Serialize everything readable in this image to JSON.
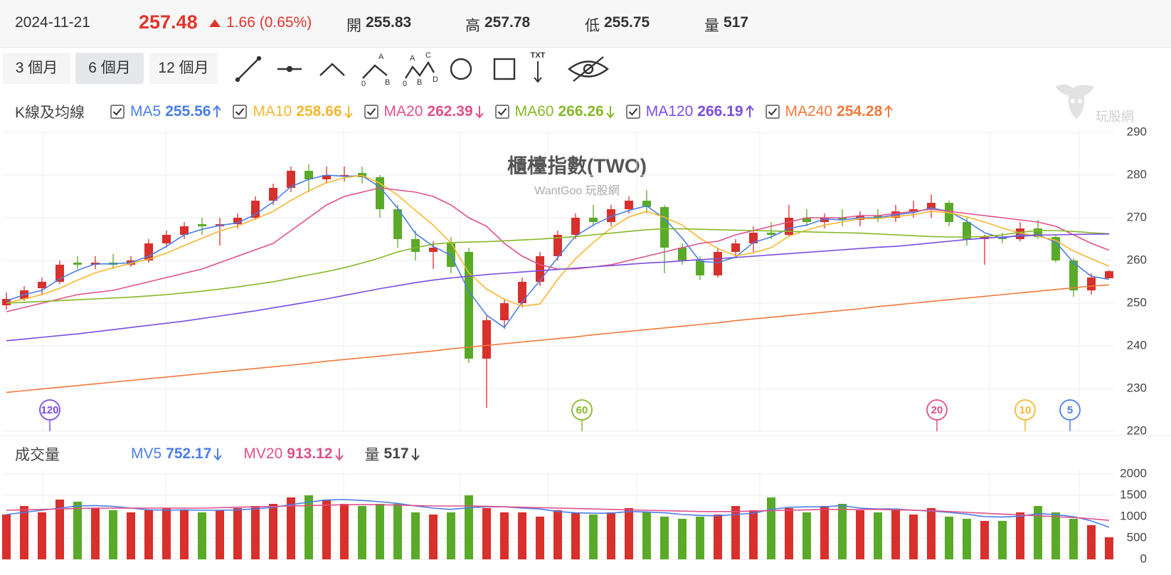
{
  "header": {
    "date": "2024-11-21",
    "change": "1.66 (0.65%)",
    "open_label": "開",
    "high_label": "高",
    "low_label": "低",
    "volume_label": "量"
  },
  "toolbar": {
    "buttons": [
      "3 個月",
      "6 個月",
      "12 個月"
    ],
    "active": 1,
    "abc": [
      "A",
      "0",
      "B"
    ],
    "abcd": [
      "A",
      "C",
      "0",
      "B",
      "D"
    ],
    "text_tool": "TXT"
  },
  "logo": "玩股網",
  "chart_data": [
    {
      "type": "candlestick",
      "title": "櫃檯指數(TWO)",
      "subtitle": "WantGoo 玩股網",
      "legend_title": "K線及均線",
      "up_color": "#d8302c",
      "down_color": "#5aaa2a",
      "open": [
        249.5,
        251,
        253.5,
        255,
        259.5,
        259,
        259.5,
        259,
        260,
        264,
        266,
        268.5,
        268,
        268.5,
        270,
        274,
        277,
        281,
        279,
        280,
        280.5,
        279.5,
        272,
        265,
        262,
        264,
        262,
        237,
        246,
        250,
        255,
        261,
        266,
        270,
        269,
        272,
        274,
        272.5,
        263,
        260,
        256.5,
        262,
        264,
        266.5,
        266,
        270,
        269,
        270,
        269.5,
        270.5,
        270,
        271.5,
        272,
        273.5,
        269,
        265,
        265.5,
        265,
        267.5,
        265.5,
        260,
        253,
        255.83
      ],
      "high": [
        252.5,
        254,
        256,
        260,
        261,
        261,
        261.5,
        261,
        265,
        267,
        269,
        270,
        270,
        271,
        275,
        278,
        282,
        282.5,
        282,
        282,
        282,
        280,
        273,
        267,
        264.5,
        265.5,
        263,
        247,
        251,
        256,
        262,
        267,
        271,
        273,
        273,
        275,
        276.5,
        273,
        264,
        261,
        263,
        265,
        268,
        269,
        273,
        272,
        271,
        272,
        271.5,
        272,
        273,
        274,
        275.5,
        274,
        270,
        266,
        266.5,
        269,
        269.5,
        266,
        260.5,
        257,
        257.78
      ],
      "low": [
        248.5,
        250.5,
        252,
        254.5,
        258,
        258,
        258,
        258.5,
        259.5,
        263,
        265,
        266,
        263.5,
        267.5,
        269.5,
        273,
        276,
        276,
        278,
        278.5,
        278,
        270,
        263,
        260,
        258,
        257,
        236,
        225.5,
        244,
        249,
        254,
        260,
        265,
        268,
        268,
        271,
        271,
        257,
        259,
        255.5,
        256,
        261,
        262,
        265,
        265.5,
        268,
        267.5,
        268,
        268,
        269,
        269,
        270,
        270,
        268,
        263.5,
        259,
        264,
        264.5,
        265,
        259.5,
        251.5,
        252,
        255.75
      ],
      "close": [
        251,
        253,
        255,
        259,
        259,
        259.5,
        259,
        260,
        264,
        266,
        268,
        268,
        268.5,
        270,
        274,
        277,
        281,
        279,
        280,
        280,
        279.5,
        272,
        265,
        262,
        263,
        258.5,
        237,
        246,
        250,
        255,
        261,
        266,
        270,
        269,
        272,
        274,
        272.5,
        263,
        260,
        256.5,
        262,
        264,
        266.5,
        266,
        270,
        269,
        270,
        269.5,
        270.5,
        270,
        271.5,
        272,
        273.5,
        269,
        265,
        265.5,
        265,
        267.5,
        265.5,
        260,
        253,
        256,
        257.48
      ],
      "series": [
        {
          "name": "MA5",
          "color": "#4a7ee8",
          "trend": "up",
          "values": [
            250.5,
            252,
            253,
            255.7,
            257.7,
            259.2,
            259.2,
            259.5,
            261,
            263.3,
            266,
            267.3,
            268.2,
            268.8,
            270.8,
            273.7,
            277.3,
            279,
            280,
            279.7,
            279.8,
            277.2,
            272.2,
            266.3,
            263.3,
            261.2,
            252.8,
            247.2,
            244.3,
            250.3,
            255.3,
            260.7,
            265.7,
            268.3,
            270.3,
            271.7,
            272.8,
            269.8,
            265.2,
            259.8,
            259.5,
            260.8,
            264.2,
            265.5,
            267.5,
            268.3,
            269.7,
            269.5,
            270,
            270,
            270.7,
            271.2,
            272.3,
            271.5,
            269.2,
            266.5,
            265.2,
            266,
            266,
            264.3,
            259.5,
            256.3,
            255.56
          ]
        },
        {
          "name": "MA10",
          "color": "#f5b731",
          "trend": "down",
          "values": [
            250,
            251,
            252,
            253.5,
            255.4,
            257.1,
            258.3,
            259.3,
            260.3,
            261.7,
            263.5,
            265.2,
            266.9,
            268.1,
            269.7,
            271.5,
            274.1,
            276.3,
            278.2,
            279.4,
            279.9,
            278.1,
            275.3,
            271.7,
            268.3,
            264.1,
            257.1,
            253.3,
            250.9,
            249.3,
            249.8,
            255.6,
            260.4,
            264.2,
            267.6,
            270.2,
            271.5,
            270.1,
            268.3,
            265.2,
            262.8,
            261.1,
            261.8,
            263,
            265.7,
            267.1,
            268.3,
            269,
            269.8,
            269.8,
            270.3,
            270.7,
            271.5,
            271.2,
            270.2,
            269,
            267.6,
            266.4,
            265.7,
            264.7,
            262.2,
            260.4,
            258.66
          ]
        },
        {
          "name": "MA20",
          "color": "#e0508a",
          "trend": "down",
          "values": [
            248,
            249,
            250,
            251,
            252,
            252.5,
            253,
            254,
            255,
            256,
            257,
            258,
            259.5,
            261,
            262.5,
            264,
            267,
            270,
            273,
            275,
            276,
            277,
            276.5,
            276,
            275,
            273,
            270,
            268,
            264,
            261,
            259,
            258,
            258,
            258.5,
            259,
            260,
            261,
            262,
            263,
            264,
            264.5,
            266,
            267,
            268,
            269,
            270,
            270,
            270,
            270.5,
            270.5,
            271,
            271.5,
            272,
            271.5,
            271,
            270.5,
            270,
            269.5,
            269,
            268,
            266,
            264,
            262.39
          ]
        },
        {
          "name": "MA60",
          "color": "#86b828",
          "trend": "down",
          "values": [
            250,
            250.2,
            250.4,
            250.6,
            250.8,
            251,
            251.2,
            251.4,
            251.7,
            252,
            252.4,
            252.8,
            253.3,
            253.8,
            254.4,
            255,
            255.8,
            256.6,
            257.4,
            258.3,
            259.4,
            260.6,
            262,
            263,
            263.8,
            264.2,
            264.3,
            264.4,
            264.6,
            264.8,
            265,
            265.3,
            265.6,
            266,
            266.4,
            266.8,
            267.2,
            267.4,
            267.4,
            267.3,
            267.2,
            267.1,
            267,
            266.9,
            266.8,
            266.7,
            266.6,
            266.5,
            266.4,
            266.2,
            266,
            265.8,
            265.6,
            265.5,
            265.5,
            265.6,
            266,
            266.6,
            267,
            267,
            266.8,
            266.5,
            266.26
          ]
        },
        {
          "name": "MA120",
          "color": "#7b4de0",
          "trend": "up",
          "values": [
            241.2,
            241.6,
            242,
            242.4,
            242.8,
            243.3,
            243.8,
            244.3,
            244.8,
            245.3,
            245.8,
            246.4,
            247,
            247.6,
            248.2,
            248.9,
            249.6,
            250.3,
            251,
            251.8,
            252.6,
            253.4,
            254.1,
            254.8,
            255.4,
            255.9,
            256.3,
            256.7,
            257,
            257.3,
            257.6,
            257.9,
            258.2,
            258.5,
            258.8,
            259.1,
            259.4,
            259.6,
            259.9,
            260.2,
            260.4,
            260.7,
            261,
            261.3,
            261.6,
            261.9,
            262.2,
            262.5,
            262.8,
            263.1,
            263.3,
            263.7,
            264.1,
            264.5,
            264.9,
            265.2,
            265.5,
            265.7,
            265.9,
            266,
            266.1,
            266.15,
            266.19
          ]
        },
        {
          "name": "MA240",
          "color": "#f07a3c",
          "trend": "up",
          "values": [
            229.1,
            229.5,
            229.9,
            230.3,
            230.7,
            231.1,
            231.5,
            231.9,
            232.3,
            232.7,
            233.1,
            233.5,
            233.9,
            234.3,
            234.7,
            235.1,
            235.5,
            235.9,
            236.4,
            236.8,
            237.2,
            237.6,
            238,
            238.4,
            238.8,
            239.3,
            239.7,
            240.1,
            240.5,
            240.9,
            241.3,
            241.7,
            242.1,
            242.6,
            243,
            243.4,
            243.8,
            244.2,
            244.6,
            245,
            245.4,
            245.9,
            246.3,
            246.7,
            247.1,
            247.5,
            247.9,
            248.3,
            248.7,
            249.2,
            249.6,
            250,
            250.4,
            250.8,
            251.2,
            251.6,
            252,
            252.4,
            252.8,
            253.2,
            253.6,
            254,
            254.28
          ]
        }
      ],
      "markers": [
        {
          "label": "120",
          "color": "#7b4de0"
        },
        {
          "label": "60",
          "color": "#86b828"
        },
        {
          "label": "20",
          "color": "#e0508a"
        },
        {
          "label": "10",
          "color": "#f5b731"
        },
        {
          "label": "5",
          "color": "#4a7ee8"
        }
      ],
      "ylim": [
        220,
        290
      ],
      "yticks": [
        220,
        230,
        240,
        250,
        260,
        270,
        280,
        290
      ],
      "grid": true
    },
    {
      "type": "bar",
      "legend_title": "成交量",
      "value_name": "量",
      "value_trend": "down",
      "values": [
        1050,
        1250,
        1100,
        1400,
        1350,
        1200,
        1150,
        1100,
        1150,
        1200,
        1150,
        1100,
        1150,
        1200,
        1250,
        1300,
        1450,
        1500,
        1400,
        1300,
        1250,
        1300,
        1300,
        1100,
        1050,
        1100,
        1500,
        1200,
        1100,
        1100,
        1000,
        1150,
        1100,
        1050,
        1100,
        1200,
        1100,
        1000,
        950,
        1000,
        1050,
        1250,
        1150,
        1450,
        1200,
        1100,
        1250,
        1300,
        1150,
        1100,
        1150,
        1050,
        1200,
        1000,
        950,
        900,
        900,
        1100,
        1250,
        1100,
        950,
        800,
        517
      ],
      "series": [
        {
          "name": "MV5",
          "color": "#4a7ee8",
          "trend": "down",
          "values": [
            1050,
            1100,
            1150,
            1200,
            1250,
            1260,
            1240,
            1200,
            1160,
            1150,
            1160,
            1150,
            1150,
            1160,
            1180,
            1220,
            1280,
            1340,
            1390,
            1400,
            1380,
            1350,
            1310,
            1250,
            1200,
            1170,
            1210,
            1230,
            1230,
            1200,
            1180,
            1120,
            1090,
            1080,
            1080,
            1120,
            1110,
            1090,
            1050,
            1030,
            1020,
            1050,
            1080,
            1170,
            1220,
            1230,
            1230,
            1260,
            1200,
            1180,
            1180,
            1150,
            1130,
            1100,
            1060,
            1000,
            990,
            1010,
            1070,
            1050,
            1000,
            900,
            752.17
          ]
        },
        {
          "name": "MV20",
          "color": "#e0508a",
          "trend": "down",
          "values": [
            1150,
            1160,
            1170,
            1180,
            1190,
            1200,
            1200,
            1200,
            1200,
            1200,
            1200,
            1200,
            1210,
            1220,
            1230,
            1240,
            1250,
            1260,
            1270,
            1280,
            1280,
            1280,
            1270,
            1260,
            1250,
            1250,
            1250,
            1240,
            1230,
            1220,
            1210,
            1200,
            1190,
            1180,
            1170,
            1160,
            1150,
            1140,
            1130,
            1120,
            1120,
            1120,
            1130,
            1140,
            1150,
            1160,
            1170,
            1170,
            1170,
            1170,
            1160,
            1150,
            1140,
            1120,
            1100,
            1080,
            1060,
            1040,
            1020,
            1000,
            980,
            950,
            913.12
          ]
        }
      ],
      "ylim": [
        0,
        2000
      ],
      "yticks": [
        0,
        500,
        1000,
        1500,
        2000
      ],
      "grid": true
    }
  ]
}
